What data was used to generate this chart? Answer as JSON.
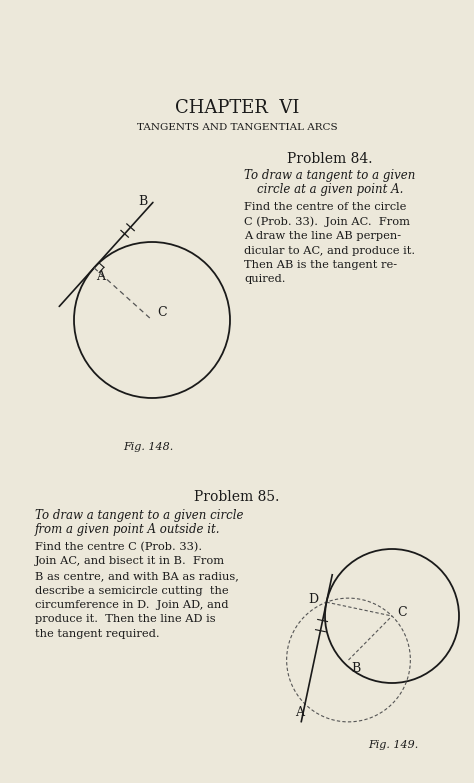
{
  "bg_color": "#ece8da",
  "text_color": "#1a1a1a",
  "line_color": "#1a1a1a",
  "dashed_color": "#555555",
  "page_title": "CHAPTER  VI",
  "subtitle": "TANGENTS AND TANGENTIAL ARCS",
  "prob84_title": "Problem 84.",
  "prob84_italic_1": "To draw a tangent to a given",
  "prob84_italic_2": "circle at a given point A.",
  "prob84_body": [
    "Find the centre of the circle",
    "C (Prob. 33).  Join AC.  From",
    "A draw the line AB perpen-",
    "dicular to AC, and produce it.",
    "Then AB is the tangent re-",
    "quired."
  ],
  "fig148_label": "Fig. 148.",
  "prob85_title": "Problem 85.",
  "prob85_italic_1": "To draw a tangent to a given circle",
  "prob85_italic_2": "from a given point A outside it.",
  "prob85_body": [
    "Find the centre C (Prob. 33).",
    "Join AC, and bisect it in B.  From",
    "B as centre, and with BA as radius,",
    "describe a semicircle cutting  the",
    "circumference in D.  Join AD, and",
    "produce it.  Then the line AD is",
    "the tangent required."
  ],
  "fig149_label": "Fig. 149."
}
